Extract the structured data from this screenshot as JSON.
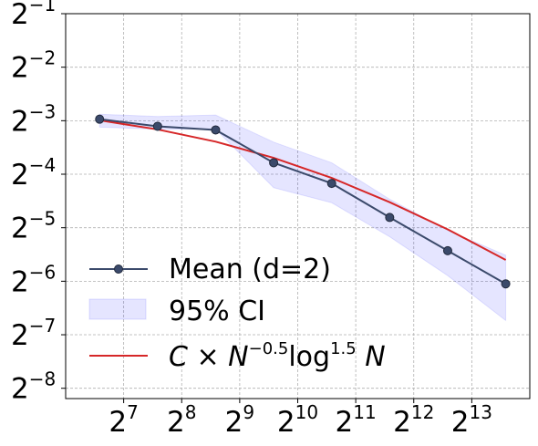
{
  "chart_data": {
    "type": "line",
    "x_scale": "log2",
    "y_scale": "log2",
    "x": [
      96,
      192,
      384,
      768,
      1536,
      3072,
      6144,
      12288
    ],
    "xlim": [
      64,
      16384
    ],
    "ylim": [
      0.003418,
      0.5
    ],
    "x_ticks": [
      {
        "value": 128,
        "base": "2",
        "exp": "7"
      },
      {
        "value": 256,
        "base": "2",
        "exp": "8"
      },
      {
        "value": 512,
        "base": "2",
        "exp": "9"
      },
      {
        "value": 1024,
        "base": "2",
        "exp": "10"
      },
      {
        "value": 2048,
        "base": "2",
        "exp": "11"
      },
      {
        "value": 4096,
        "base": "2",
        "exp": "12"
      },
      {
        "value": 8192,
        "base": "2",
        "exp": "13"
      }
    ],
    "y_ticks": [
      {
        "value": 0.5,
        "base": "2",
        "exp": "−1"
      },
      {
        "value": 0.25,
        "base": "2",
        "exp": "−2"
      },
      {
        "value": 0.125,
        "base": "2",
        "exp": "−3"
      },
      {
        "value": 0.0625,
        "base": "2",
        "exp": "−4"
      },
      {
        "value": 0.03125,
        "base": "2",
        "exp": "−5"
      },
      {
        "value": 0.015625,
        "base": "2",
        "exp": "−6"
      },
      {
        "value": 0.0078125,
        "base": "2",
        "exp": "−7"
      },
      {
        "value": 0.00390625,
        "base": "2",
        "exp": "−8"
      }
    ],
    "grid": true,
    "legend_position": "lower-left",
    "series": [
      {
        "name": "Mean (d=2)",
        "kind": "line-markers",
        "color": "#3b4a6b",
        "values": [
          0.1275,
          0.1163,
          0.1109,
          0.0725,
          0.0555,
          0.0357,
          0.0232,
          0.0151
        ]
      },
      {
        "name": "95% CI",
        "kind": "band",
        "color": "#0000ff",
        "lower": [
          0.115,
          0.112,
          0.112,
          0.0525,
          0.0432,
          0.0278,
          0.0168,
          0.0094
        ],
        "upper": [
          0.136,
          0.132,
          0.1345,
          0.0947,
          0.0725,
          0.0452,
          0.0302,
          0.0219
        ]
      },
      {
        "name": "C×N^−0.5 log^1.5 N",
        "kind": "line",
        "color": "#d62728",
        "values": [
          0.1257,
          0.1116,
          0.0953,
          0.0773,
          0.0596,
          0.0435,
          0.0306,
          0.0206
        ]
      }
    ],
    "legend": {
      "mean_label": "Mean (d=2)",
      "ci_label": "95% CI",
      "fit_label_prefix": "C × N",
      "fit_label_exp1": "−0.5",
      "fit_label_mid": "log",
      "fit_label_exp2": "1.5",
      "fit_label_suffix": " N"
    }
  }
}
